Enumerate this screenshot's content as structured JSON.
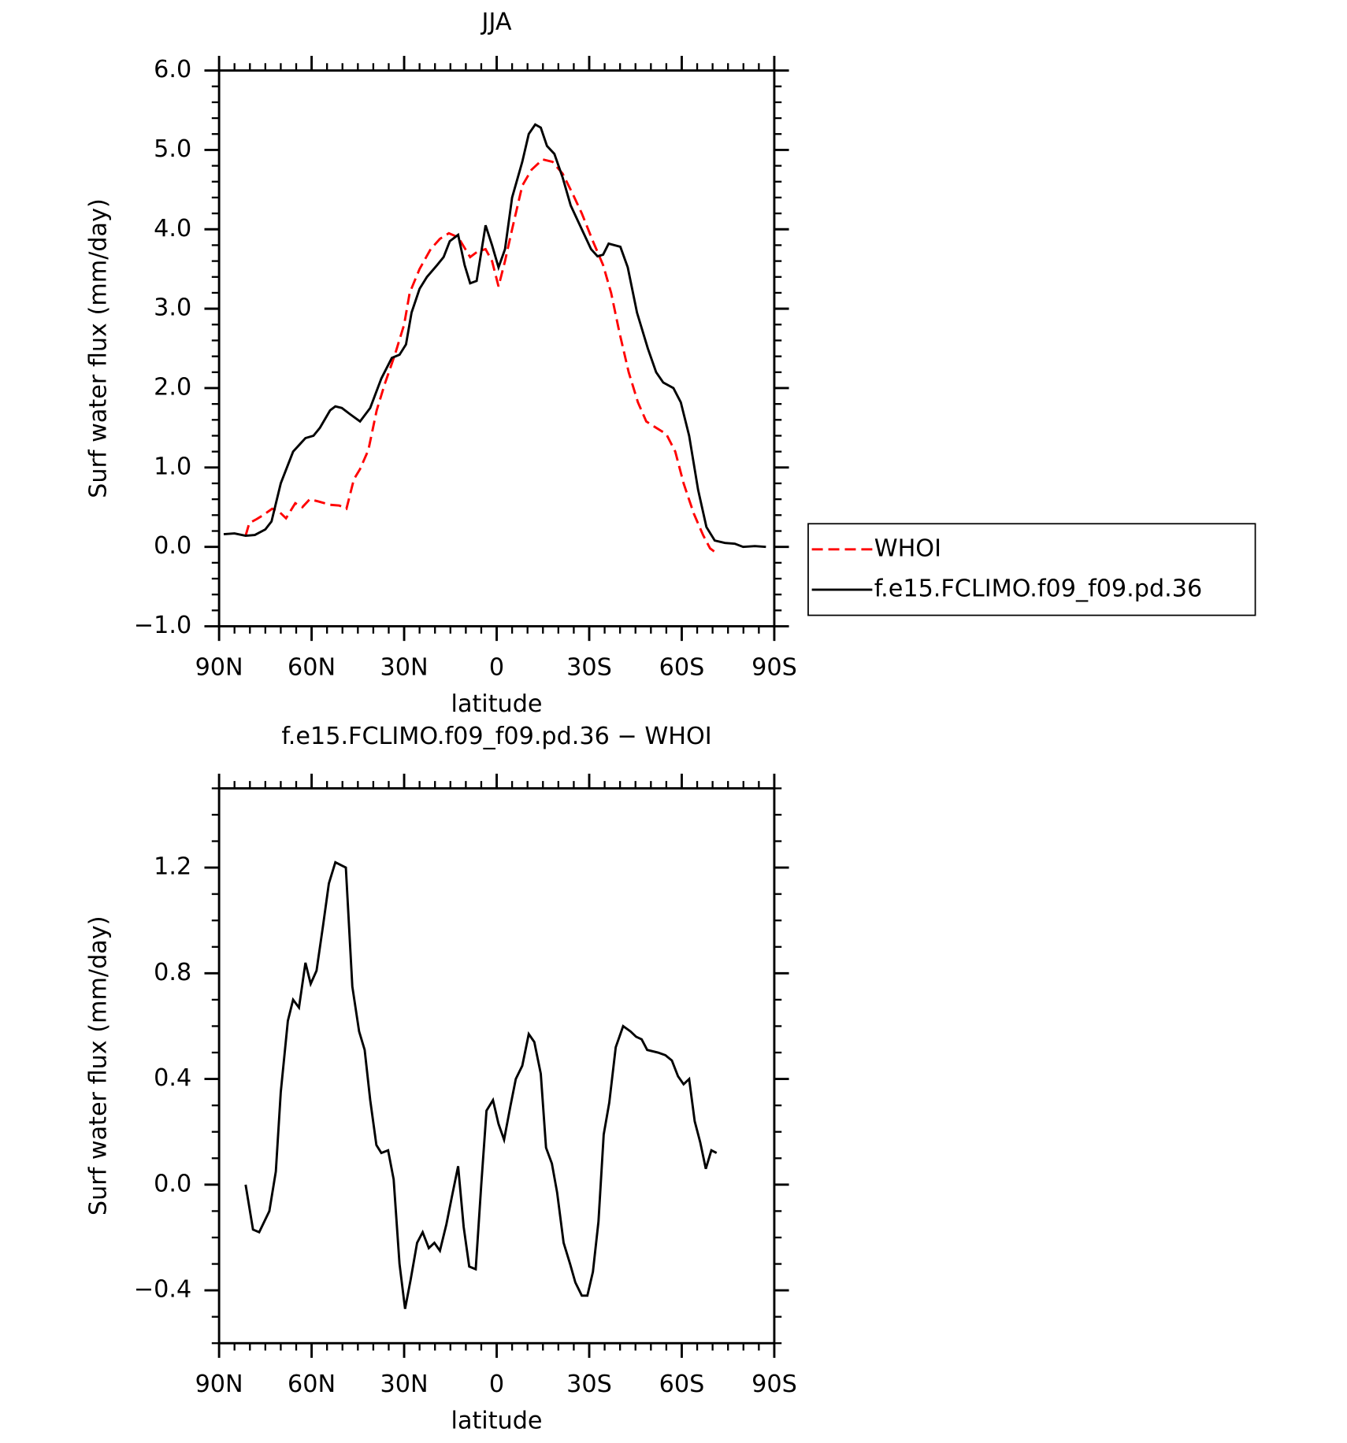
{
  "chart_data": [
    {
      "type": "line",
      "title": "JJA",
      "xlabel": "latitude",
      "ylabel": "Surf water flux (mm/day)",
      "xlim": [
        90,
        -90
      ],
      "xticks": [
        {
          "value": 90,
          "label": "90N"
        },
        {
          "value": 60,
          "label": "60N"
        },
        {
          "value": 30,
          "label": "30N"
        },
        0,
        {
          "value": -30,
          "label": "30S"
        },
        {
          "value": -60,
          "label": "60S"
        },
        {
          "value": -90,
          "label": "90S"
        }
      ],
      "ylim": [
        -1,
        6
      ],
      "yticks": [
        {
          "value": -1,
          "label": "−1.0"
        },
        {
          "value": 0,
          "label": "0.0"
        },
        {
          "value": 1,
          "label": "1.0"
        },
        {
          "value": 2,
          "label": "2.0"
        },
        {
          "value": 3,
          "label": "3.0"
        },
        {
          "value": 4,
          "label": "4.0"
        },
        {
          "value": 5,
          "label": "5.0"
        },
        {
          "value": 6,
          "label": "6.0"
        }
      ],
      "minor_ticks": {
        "x": 6,
        "y": 5
      },
      "legend": "right",
      "series": [
        {
          "name": "WHOI",
          "color": "#ff0000",
          "line_style": "dashed",
          "x": [
            81.4,
            80.2,
            77.8,
            75.7,
            72.8,
            70.7,
            68.3,
            65.3,
            63,
            60.6,
            57.6,
            54,
            51,
            48.7,
            46.3,
            44.3,
            41.6,
            38.9,
            36.3,
            33,
            30,
            28.2,
            25,
            21.4,
            18.4,
            15.5,
            12.5,
            8.6,
            6.2,
            3.6,
            1.5,
            -0.6,
            -2.7,
            -5,
            -8.3,
            -11.3,
            -14.9,
            -18.1,
            -21.4,
            -24.6,
            -27.6,
            -31.2,
            -34.5,
            -37.1,
            -39.8,
            -42.8,
            -45.8,
            -48.5,
            -51.7,
            -55,
            -57.9,
            -60.6,
            -63.9,
            -66.9,
            -69.2,
            -71
          ],
          "values": [
            0.14,
            0.3,
            0.35,
            0.4,
            0.48,
            0.45,
            0.36,
            0.55,
            0.5,
            0.6,
            0.57,
            0.53,
            0.52,
            0.48,
            0.85,
            0.98,
            1.22,
            1.72,
            2.05,
            2.42,
            2.8,
            3.2,
            3.5,
            3.75,
            3.88,
            3.95,
            3.9,
            3.65,
            3.72,
            3.75,
            3.6,
            3.28,
            3.6,
            4.0,
            4.55,
            4.75,
            4.88,
            4.85,
            4.7,
            4.45,
            4.2,
            3.85,
            3.55,
            3.2,
            2.7,
            2.2,
            1.82,
            1.58,
            1.5,
            1.42,
            1.2,
            0.8,
            0.42,
            0.15,
            -0.02,
            -0.07
          ]
        },
        {
          "name": "f.e15.FCLIMO.f09_f09.pd.36",
          "color": "#000000",
          "line_style": "solid",
          "x": [
            88.5,
            85,
            81.4,
            78.4,
            75,
            73,
            70,
            66,
            62,
            59.4,
            57.3,
            54,
            52.3,
            50.2,
            47.5,
            44.3,
            41,
            37.4,
            34,
            31.5,
            29.4,
            27.6,
            25,
            22.6,
            19.3,
            17.2,
            15.2,
            12.5,
            10.4,
            8.6,
            6.5,
            3.6,
            1.5,
            -0.6,
            -2.7,
            -5,
            -8.3,
            -10.4,
            -12.5,
            -14.3,
            -16.3,
            -18.7,
            -21.4,
            -24,
            -27,
            -30.6,
            -32.7,
            -34.5,
            -36.3,
            -40.1,
            -42.5,
            -45.5,
            -49,
            -51.7,
            -54,
            -57.3,
            -59.7,
            -62.4,
            -65.3,
            -68,
            -70.7,
            -74,
            -77.2,
            -79.9,
            -83.7,
            -87.3
          ],
          "values": [
            0.16,
            0.17,
            0.14,
            0.15,
            0.22,
            0.32,
            0.8,
            1.2,
            1.37,
            1.4,
            1.5,
            1.72,
            1.77,
            1.75,
            1.67,
            1.58,
            1.75,
            2.12,
            2.38,
            2.42,
            2.55,
            2.95,
            3.25,
            3.4,
            3.55,
            3.65,
            3.85,
            3.93,
            3.55,
            3.32,
            3.35,
            4.05,
            3.8,
            3.52,
            3.75,
            4.4,
            4.85,
            5.2,
            5.32,
            5.28,
            5.05,
            4.95,
            4.65,
            4.3,
            4.05,
            3.75,
            3.66,
            3.68,
            3.82,
            3.78,
            3.52,
            2.95,
            2.5,
            2.2,
            2.07,
            2.0,
            1.82,
            1.4,
            0.72,
            0.25,
            0.08,
            0.05,
            0.04,
            0.0,
            0.01,
            0.0
          ]
        }
      ]
    },
    {
      "type": "line",
      "title": "f.e15.FCLIMO.f09_f09.pd.36 − WHOI",
      "xlabel": "latitude",
      "ylabel": "Surf water flux (mm/day)",
      "xlim": [
        90,
        -90
      ],
      "xticks": [
        {
          "value": 90,
          "label": "90N"
        },
        {
          "value": 60,
          "label": "60N"
        },
        {
          "value": 30,
          "label": "30N"
        },
        0,
        {
          "value": -30,
          "label": "30S"
        },
        {
          "value": -60,
          "label": "60S"
        },
        {
          "value": -90,
          "label": "90S"
        }
      ],
      "ylim": [
        -0.6,
        1.5
      ],
      "yticks": [
        {
          "value": -0.4,
          "label": "−0.4"
        },
        {
          "value": 0,
          "label": "0.0"
        },
        0.4,
        0.8,
        1.2
      ],
      "minor_ticks": {
        "x": 6,
        "y": 4
      },
      "series": [
        {
          "color": "#000000",
          "line_style": "solid",
          "x": [
            81.4,
            79,
            77,
            73.7,
            71.6,
            70,
            67.7,
            66,
            64.1,
            62,
            60.3,
            58.4,
            56.3,
            54.4,
            52.3,
            48.9,
            46.8,
            44.6,
            42.8,
            41,
            39,
            37.4,
            35.2,
            33.4,
            31.5,
            29.7,
            27.9,
            25.8,
            24,
            22,
            20.2,
            18.4,
            16.3,
            14.6,
            12.5,
            10.7,
            8.9,
            6.8,
            5,
            3.3,
            1.2,
            -0.6,
            -2.4,
            -4.5,
            -6.2,
            -8.3,
            -10.4,
            -12.2,
            -14.3,
            -16,
            -17.9,
            -19.6,
            -21.7,
            -23.8,
            -25.5,
            -27.6,
            -29.4,
            -31.2,
            -33,
            -34.7,
            -36.5,
            -38.6,
            -41,
            -43.4,
            -45.2,
            -47,
            -48.8,
            -52.3,
            -54.7,
            -56.8,
            -58.8,
            -60.6,
            -62.4,
            -64.2,
            -66,
            -67.8,
            -69.6,
            -71.3
          ],
          "values": [
            0.0,
            -0.17,
            -0.18,
            -0.1,
            0.05,
            0.35,
            0.62,
            0.7,
            0.67,
            0.84,
            0.76,
            0.81,
            0.98,
            1.14,
            1.22,
            1.2,
            0.75,
            0.58,
            0.51,
            0.32,
            0.15,
            0.12,
            0.13,
            0.02,
            -0.3,
            -0.47,
            -0.36,
            -0.22,
            -0.18,
            -0.24,
            -0.22,
            -0.25,
            -0.15,
            -0.05,
            0.07,
            -0.16,
            -0.31,
            -0.32,
            0.0,
            0.28,
            0.32,
            0.23,
            0.17,
            0.3,
            0.4,
            0.45,
            0.57,
            0.54,
            0.42,
            0.14,
            0.08,
            -0.03,
            -0.22,
            -0.3,
            -0.37,
            -0.42,
            -0.42,
            -0.33,
            -0.14,
            0.19,
            0.31,
            0.52,
            0.6,
            0.58,
            0.56,
            0.55,
            0.51,
            0.5,
            0.49,
            0.47,
            0.41,
            0.38,
            0.4,
            0.24,
            0.16,
            0.06,
            0.13,
            0.12
          ]
        }
      ]
    }
  ]
}
